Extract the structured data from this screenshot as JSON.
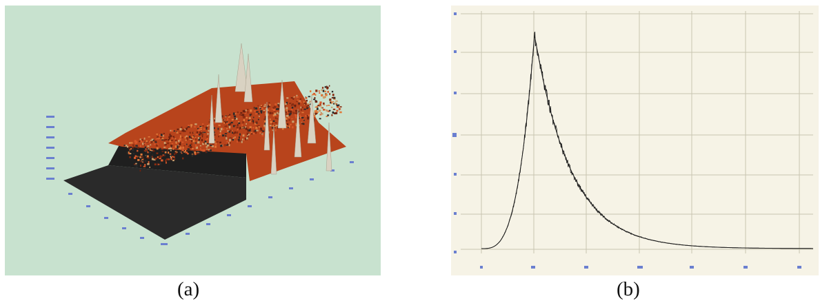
{
  "figure": {
    "panels": [
      {
        "id": "a",
        "caption": "(a)",
        "kind": "3d-surface-plot",
        "background_color": "#c8e2cf",
        "surface_color": "#c0461e",
        "base_color": "#2a2a2a"
      },
      {
        "id": "b",
        "caption": "(b)",
        "kind": "line-plot",
        "background_color": "#f6f3e6",
        "line_color": "#1a1a1a",
        "grid": true
      }
    ]
  },
  "chart_data": {
    "type": "line",
    "title": "",
    "xlabel": "",
    "ylabel": "",
    "grid": true,
    "series": [
      {
        "shape": "sharp rise, peak, long exponential tail",
        "rise_start": 0.0,
        "peak_at": 0.16,
        "peak_value": 1.0,
        "tail_end": 0.62
      }
    ]
  }
}
